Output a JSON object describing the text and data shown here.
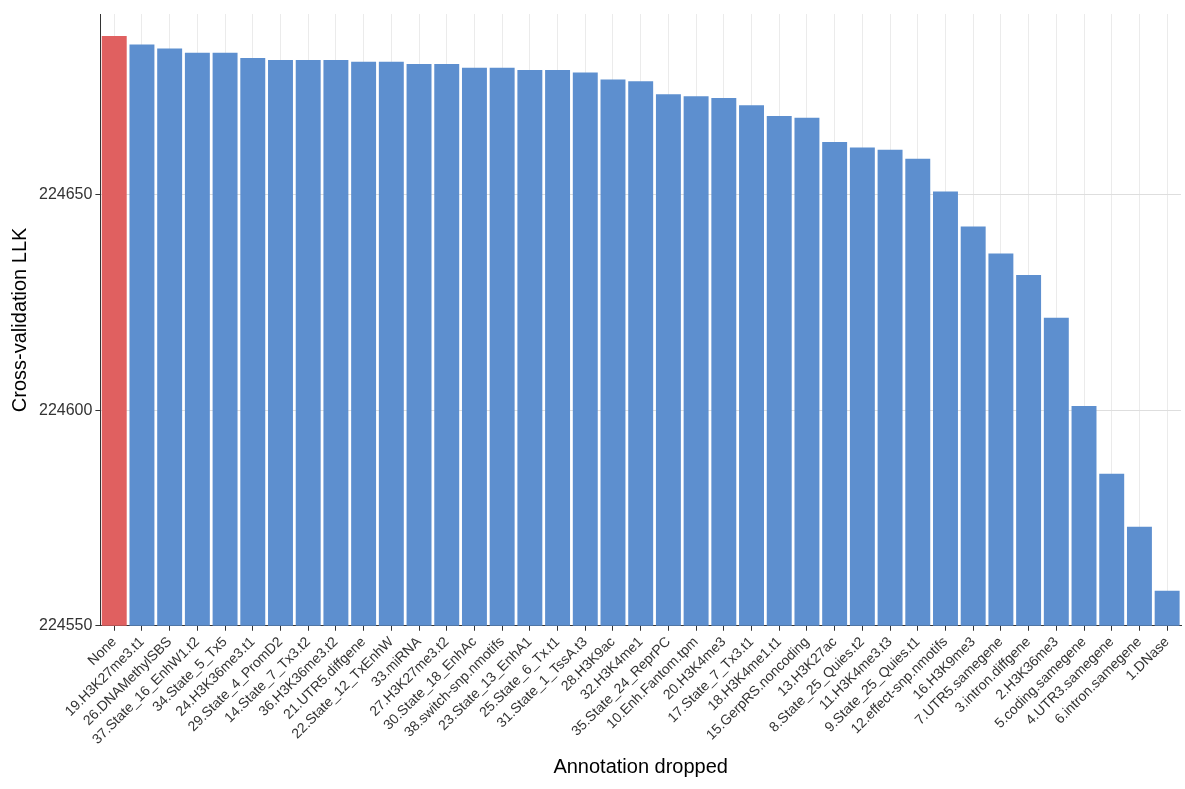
{
  "chart_data": {
    "type": "bar",
    "xlabel": "Annotation dropped",
    "ylabel": "Cross-validation LLK",
    "categories": [
      "None",
      "19.H3K27me3.t1",
      "26.DNAMethylSBS",
      "37.State_16_EnhW1.t2",
      "34.State_5_Tx5",
      "24.H3K36me3.t1",
      "29.State_4_PromD2",
      "14.State_7_Tx3.t2",
      "36.H3K36me3.t2",
      "21.UTR5.diffgene",
      "22.State_12_TxEnhW",
      "33.miRNA",
      "27.H3K27me3.t2",
      "30.State_18_EnhAc",
      "38.switch-snp.nmotifs",
      "23.State_13_EnhA1",
      "25.State_6_Tx.t1",
      "31.State_1_TssA.t3",
      "28.H3K9ac",
      "32.H3K4me1",
      "35.State_24_ReprPC",
      "10.Enh.Fantom.tpm",
      "20.H3K4me3",
      "17.State_7_Tx3.t1",
      "18.H3K4me1.t1",
      "15.GerpRS.noncoding",
      "13.H3K27ac",
      "8.State_25_Quies.t2",
      "11.H3K4me3.t3",
      "9.State_25_Quies.t1",
      "12.effect-snp.nmotifs",
      "16.H3K9me3",
      "7.UTR5.samegene",
      "3.intron.diffgene",
      "2.H3K36me3",
      "5.coding.samegene",
      "4.UTR3.samegene",
      "6.intron.samegene",
      "1.DNase"
    ],
    "values": [
      224686.9,
      224684.9,
      224684.0,
      224683.0,
      224683.0,
      224681.8,
      224681.3,
      224681.3,
      224681.3,
      224680.9,
      224680.9,
      224680.4,
      224680.4,
      224679.5,
      224679.5,
      224679.0,
      224679.0,
      224678.4,
      224676.8,
      224676.4,
      224673.4,
      224672.9,
      224672.5,
      224670.8,
      224668.3,
      224667.9,
      224662.3,
      224661.0,
      224660.5,
      224658.4,
      224650.8,
      224642.7,
      224636.4,
      224631.4,
      224621.5,
      224601.0,
      224585.3,
      224573.0,
      224558.1
    ],
    "colors": [
      "#e06060",
      "#5d8fcf",
      "#5d8fcf",
      "#5d8fcf",
      "#5d8fcf",
      "#5d8fcf",
      "#5d8fcf",
      "#5d8fcf",
      "#5d8fcf",
      "#5d8fcf",
      "#5d8fcf",
      "#5d8fcf",
      "#5d8fcf",
      "#5d8fcf",
      "#5d8fcf",
      "#5d8fcf",
      "#5d8fcf",
      "#5d8fcf",
      "#5d8fcf",
      "#5d8fcf",
      "#5d8fcf",
      "#5d8fcf",
      "#5d8fcf",
      "#5d8fcf",
      "#5d8fcf",
      "#5d8fcf",
      "#5d8fcf",
      "#5d8fcf",
      "#5d8fcf",
      "#5d8fcf",
      "#5d8fcf",
      "#5d8fcf",
      "#5d8fcf",
      "#5d8fcf",
      "#5d8fcf",
      "#5d8fcf",
      "#5d8fcf",
      "#5d8fcf",
      "#5d8fcf"
    ],
    "ylim": [
      224550,
      224692
    ],
    "yticks": [
      224550,
      224600,
      224650
    ],
    "grid": true
  }
}
